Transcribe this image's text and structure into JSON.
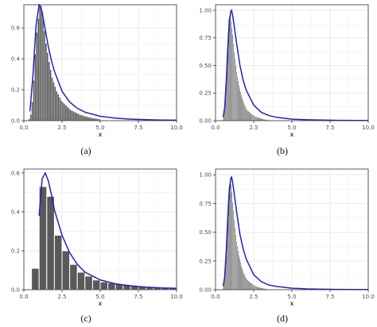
{
  "figure": {
    "captions": [
      "(a)",
      "(b)",
      "(c)",
      "(d)"
    ]
  },
  "colors": {
    "bar": "#595959",
    "bar_edge": "#ffffff",
    "curve": "#2222bb",
    "panel_bg": "#ffffff",
    "grid": "#ebebeb",
    "border": "#333333",
    "tick_text": "#4d4d4d"
  },
  "chart_data": [
    {
      "type": "bar",
      "panel": "(a)",
      "title": "",
      "xlabel": "x",
      "ylabel": "",
      "xlim": [
        0,
        10
      ],
      "ylim": [
        0,
        0.75
      ],
      "xticks": [
        0,
        2.5,
        5,
        7.5,
        10
      ],
      "xtick_labels": [
        "0.0",
        "2.5",
        "5.0",
        "7.5",
        "10.0"
      ],
      "yticks": [
        0,
        0.2,
        0.4,
        0.6
      ],
      "ytick_labels": [
        "0.0",
        "0.2",
        "0.4",
        "0.6"
      ],
      "grid": true,
      "legend": "none",
      "histogram": {
        "bin_width": 0.1,
        "x": [
          0.35,
          0.45,
          0.55,
          0.65,
          0.75,
          0.85,
          0.95,
          1.05,
          1.15,
          1.25,
          1.35,
          1.45,
          1.55,
          1.65,
          1.75,
          1.85,
          1.95,
          2.05,
          2.15,
          2.25,
          2.35,
          2.45,
          2.55,
          2.65,
          2.75,
          2.85,
          2.95,
          3.05,
          3.15,
          3.25,
          3.35,
          3.45,
          3.55,
          3.65,
          3.75,
          3.85,
          3.95,
          4.05,
          4.15,
          4.25,
          4.35,
          4.45,
          4.55,
          4.65,
          4.75,
          4.85,
          4.95
        ],
        "values": [
          0.01,
          0.04,
          0.12,
          0.26,
          0.43,
          0.57,
          0.66,
          0.74,
          0.72,
          0.66,
          0.58,
          0.5,
          0.44,
          0.38,
          0.33,
          0.28,
          0.25,
          0.22,
          0.19,
          0.17,
          0.15,
          0.13,
          0.12,
          0.11,
          0.1,
          0.09,
          0.08,
          0.07,
          0.065,
          0.06,
          0.055,
          0.05,
          0.045,
          0.04,
          0.037,
          0.034,
          0.03,
          0.028,
          0.025,
          0.022,
          0.02,
          0.018,
          0.016,
          0.015,
          0.013,
          0.012,
          0.01
        ]
      },
      "curve": {
        "name": "",
        "x": [
          0.4,
          0.6,
          0.8,
          1.0,
          1.1,
          1.2,
          1.4,
          1.6,
          1.8,
          2.0,
          2.5,
          3.0,
          3.5,
          4.0,
          5.0,
          6.0,
          7.0,
          8.0,
          9.0,
          10.0
        ],
        "y": [
          0.06,
          0.3,
          0.62,
          0.75,
          0.74,
          0.7,
          0.59,
          0.48,
          0.39,
          0.32,
          0.19,
          0.12,
          0.08,
          0.055,
          0.028,
          0.016,
          0.01,
          0.006,
          0.004,
          0.003
        ]
      }
    },
    {
      "type": "bar",
      "panel": "(b)",
      "title": "",
      "xlabel": "x",
      "ylabel": "",
      "xlim": [
        0,
        10
      ],
      "ylim": [
        0,
        1.05
      ],
      "xticks": [
        0,
        2.5,
        5,
        7.5,
        10
      ],
      "xtick_labels": [
        "0.0",
        "2.5",
        "5.0",
        "7.5",
        "10.0"
      ],
      "yticks": [
        0,
        0.25,
        0.5,
        0.75,
        1.0
      ],
      "ytick_labels": [
        "0.00",
        "0.25",
        "0.50",
        "0.75",
        "1.00"
      ],
      "grid": true,
      "legend": "none",
      "histogram": {
        "bin_width": 0.05,
        "x": [
          0.475,
          0.525,
          0.575,
          0.625,
          0.675,
          0.725,
          0.775,
          0.825,
          0.875,
          0.925,
          0.975,
          1.025,
          1.075,
          1.125,
          1.175,
          1.225,
          1.275,
          1.325,
          1.375,
          1.425,
          1.475,
          1.525,
          1.575,
          1.625,
          1.675,
          1.725,
          1.775,
          1.825,
          1.875,
          1.925,
          1.975,
          2.025,
          2.075,
          2.125,
          2.175,
          2.225,
          2.275,
          2.325,
          2.375,
          2.425,
          2.475,
          2.525,
          2.575,
          2.625,
          2.675,
          2.725,
          2.775,
          2.825,
          2.875,
          2.925,
          2.975,
          3.025,
          3.075,
          3.125,
          3.175,
          3.225,
          3.275,
          3.325,
          3.375,
          3.425,
          3.475
        ],
        "values": [
          0.01,
          0.03,
          0.08,
          0.16,
          0.3,
          0.46,
          0.62,
          0.8,
          0.92,
          0.94,
          0.98,
          0.9,
          0.84,
          0.78,
          0.7,
          0.62,
          0.56,
          0.5,
          0.44,
          0.4,
          0.36,
          0.32,
          0.29,
          0.26,
          0.23,
          0.21,
          0.19,
          0.17,
          0.15,
          0.14,
          0.12,
          0.11,
          0.1,
          0.09,
          0.085,
          0.08,
          0.07,
          0.065,
          0.06,
          0.055,
          0.05,
          0.045,
          0.04,
          0.038,
          0.035,
          0.032,
          0.03,
          0.027,
          0.025,
          0.022,
          0.02,
          0.018,
          0.016,
          0.015,
          0.014,
          0.012,
          0.011,
          0.01,
          0.009,
          0.008,
          0.007
        ]
      },
      "curve": {
        "name": "",
        "x": [
          0.5,
          0.6,
          0.7,
          0.8,
          0.9,
          1.0,
          1.05,
          1.1,
          1.2,
          1.4,
          1.6,
          1.8,
          2.0,
          2.5,
          3.0,
          3.5,
          4.0,
          5.0,
          6.0,
          7.0,
          8.0,
          9.0,
          10.0
        ],
        "y": [
          0.03,
          0.12,
          0.35,
          0.66,
          0.9,
          0.99,
          1.0,
          0.97,
          0.88,
          0.68,
          0.5,
          0.37,
          0.28,
          0.14,
          0.075,
          0.045,
          0.03,
          0.014,
          0.008,
          0.005,
          0.003,
          0.002,
          0.002
        ]
      }
    },
    {
      "type": "bar",
      "panel": "(c)",
      "title": "",
      "xlabel": "x",
      "ylabel": "",
      "xlim": [
        0,
        10
      ],
      "ylim": [
        0,
        0.62
      ],
      "xticks": [
        0,
        2.5,
        5,
        7.5,
        10
      ],
      "xtick_labels": [
        "0.0",
        "2.5",
        "5.0",
        "7.5",
        "10.0"
      ],
      "yticks": [
        0,
        0.2,
        0.4,
        0.6
      ],
      "ytick_labels": [
        "0.0",
        "0.2",
        "0.4",
        "0.6"
      ],
      "grid": true,
      "legend": "none",
      "histogram": {
        "bin_width": 0.5,
        "x": [
          0.75,
          1.25,
          1.75,
          2.25,
          2.75,
          3.25,
          3.75,
          4.25,
          4.75,
          5.25,
          5.75,
          6.25,
          6.75,
          7.25,
          7.75,
          8.25,
          8.75,
          9.25,
          9.75
        ],
        "values": [
          0.11,
          0.53,
          0.48,
          0.28,
          0.2,
          0.13,
          0.09,
          0.07,
          0.05,
          0.04,
          0.035,
          0.03,
          0.025,
          0.02,
          0.018,
          0.015,
          0.012,
          0.01,
          0.008
        ]
      },
      "curve": {
        "name": "",
        "x": [
          1.0,
          1.2,
          1.4,
          1.6,
          1.8,
          2.0,
          2.5,
          3.0,
          3.5,
          4.0,
          5.0,
          6.0,
          7.0,
          8.0,
          9.0,
          10.0
        ],
        "y": [
          0.38,
          0.57,
          0.6,
          0.56,
          0.49,
          0.41,
          0.28,
          0.19,
          0.13,
          0.09,
          0.05,
          0.03,
          0.02,
          0.013,
          0.009,
          0.007
        ]
      }
    },
    {
      "type": "bar",
      "panel": "(d)",
      "title": "",
      "xlabel": "x",
      "ylabel": "",
      "xlim": [
        0,
        10
      ],
      "ylim": [
        0,
        1.05
      ],
      "xticks": [
        0,
        2.5,
        5,
        7.5,
        10
      ],
      "xtick_labels": [
        "0.0",
        "2.5",
        "5.0",
        "7.5",
        "10.0"
      ],
      "yticks": [
        0,
        0.25,
        0.5,
        0.75,
        1.0
      ],
      "ytick_labels": [
        "0.00",
        "0.25",
        "0.50",
        "0.75",
        "1.00"
      ],
      "grid": true,
      "legend": "none",
      "histogram": {
        "bin_width": 0.05,
        "x": [
          0.475,
          0.525,
          0.575,
          0.625,
          0.675,
          0.725,
          0.775,
          0.825,
          0.875,
          0.925,
          0.975,
          1.025,
          1.075,
          1.125,
          1.175,
          1.225,
          1.275,
          1.325,
          1.375,
          1.425,
          1.475,
          1.525,
          1.575,
          1.625,
          1.675,
          1.725,
          1.775,
          1.825,
          1.875,
          1.925,
          1.975,
          2.025,
          2.075,
          2.125,
          2.175,
          2.225,
          2.275,
          2.325,
          2.375,
          2.425,
          2.475,
          2.525,
          2.575,
          2.625,
          2.675,
          2.725,
          2.775,
          2.825,
          2.875,
          2.925,
          2.975,
          3.025,
          3.075,
          3.125,
          3.175,
          3.225,
          3.275,
          3.325,
          3.375,
          3.425,
          3.475
        ],
        "values": [
          0.01,
          0.03,
          0.07,
          0.15,
          0.28,
          0.44,
          0.58,
          0.76,
          0.8,
          0.84,
          0.96,
          0.92,
          0.85,
          0.76,
          0.69,
          0.61,
          0.54,
          0.48,
          0.42,
          0.38,
          0.34,
          0.3,
          0.27,
          0.24,
          0.21,
          0.19,
          0.17,
          0.15,
          0.14,
          0.12,
          0.11,
          0.1,
          0.09,
          0.08,
          0.075,
          0.07,
          0.065,
          0.06,
          0.055,
          0.05,
          0.045,
          0.04,
          0.036,
          0.033,
          0.03,
          0.027,
          0.025,
          0.022,
          0.02,
          0.018,
          0.016,
          0.015,
          0.014,
          0.012,
          0.011,
          0.01,
          0.009,
          0.008,
          0.007,
          0.006,
          0.005
        ]
      },
      "curve": {
        "name": "",
        "x": [
          0.5,
          0.6,
          0.7,
          0.8,
          0.9,
          1.0,
          1.05,
          1.1,
          1.2,
          1.4,
          1.6,
          1.8,
          2.0,
          2.5,
          3.0,
          3.5,
          4.0,
          5.0,
          6.0,
          7.0,
          8.0,
          9.0,
          10.0
        ],
        "y": [
          0.03,
          0.11,
          0.33,
          0.63,
          0.87,
          0.97,
          0.98,
          0.95,
          0.86,
          0.66,
          0.48,
          0.36,
          0.27,
          0.13,
          0.07,
          0.04,
          0.028,
          0.013,
          0.007,
          0.004,
          0.003,
          0.002,
          0.002
        ]
      }
    }
  ]
}
